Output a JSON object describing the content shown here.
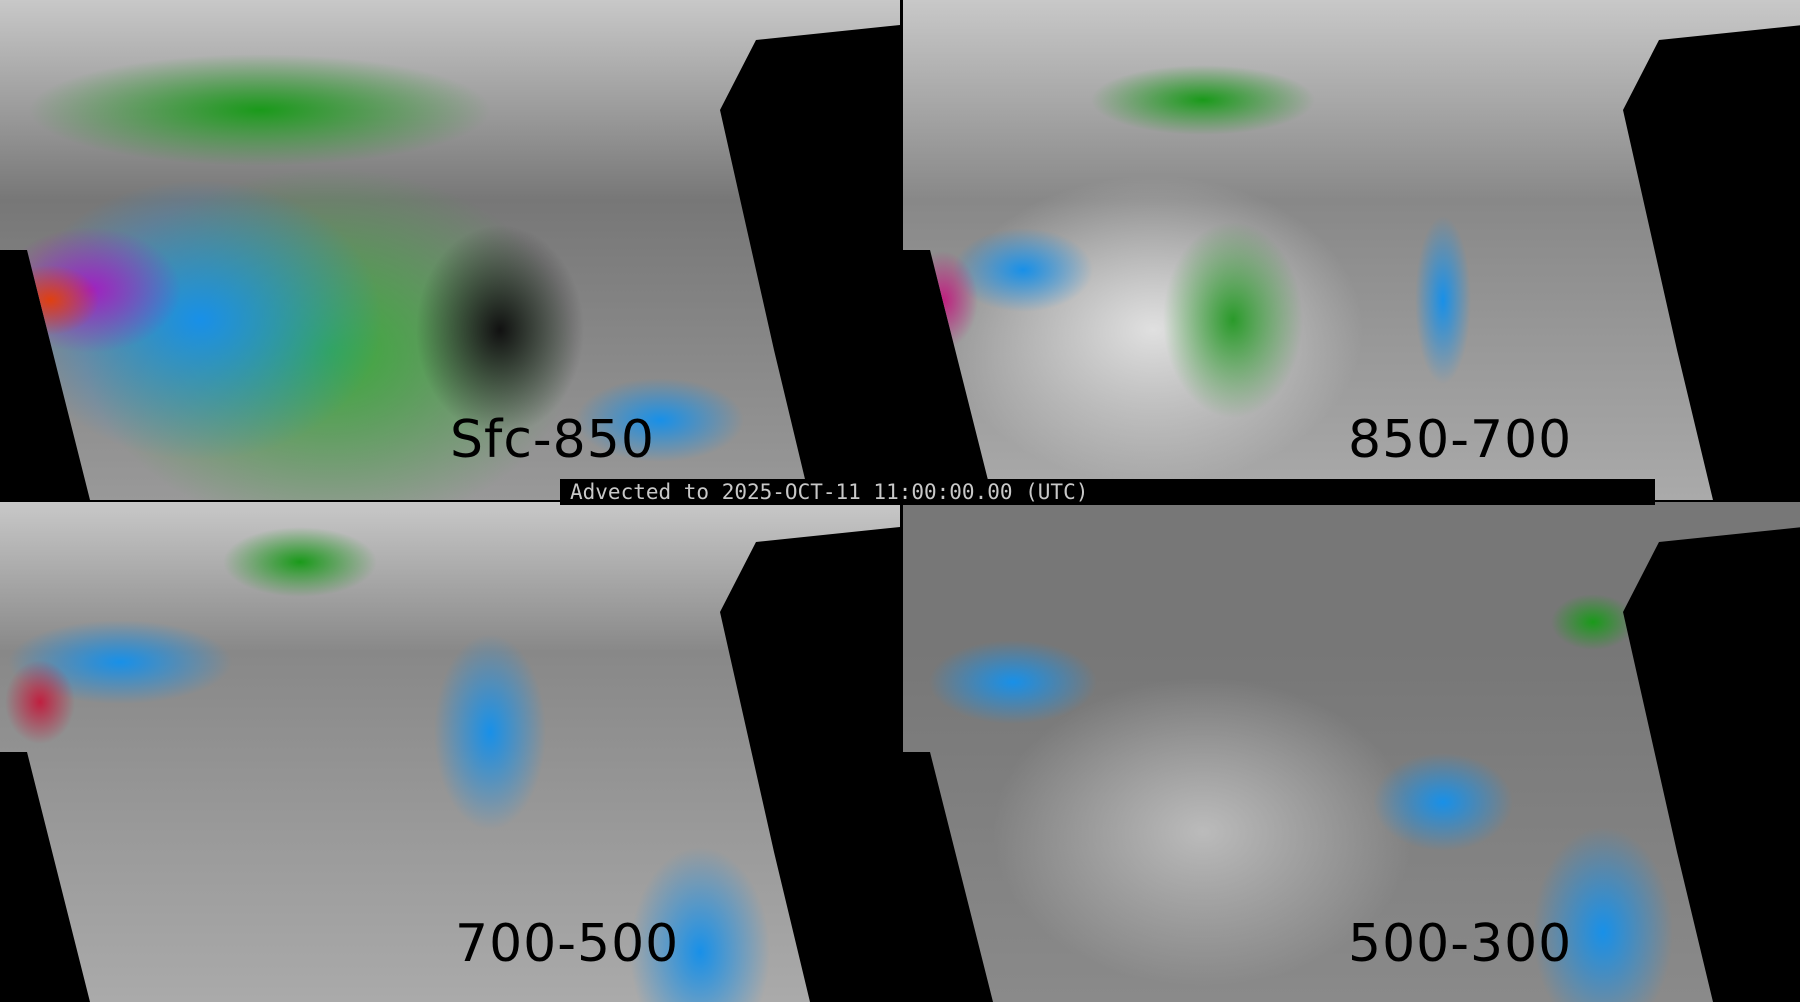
{
  "panels": [
    {
      "label": "Sfc-850"
    },
    {
      "label": "850-700"
    },
    {
      "label": "700-500"
    },
    {
      "label": "500-300"
    }
  ],
  "timestamp_label": "Advected to 2025-OCT-11 11:00:00.00 (UTC)",
  "colors": {
    "low": "#808080",
    "mid": "#1a9a1a",
    "high": "#1890e8",
    "higher": "#a020c0",
    "max": "#e04010"
  }
}
